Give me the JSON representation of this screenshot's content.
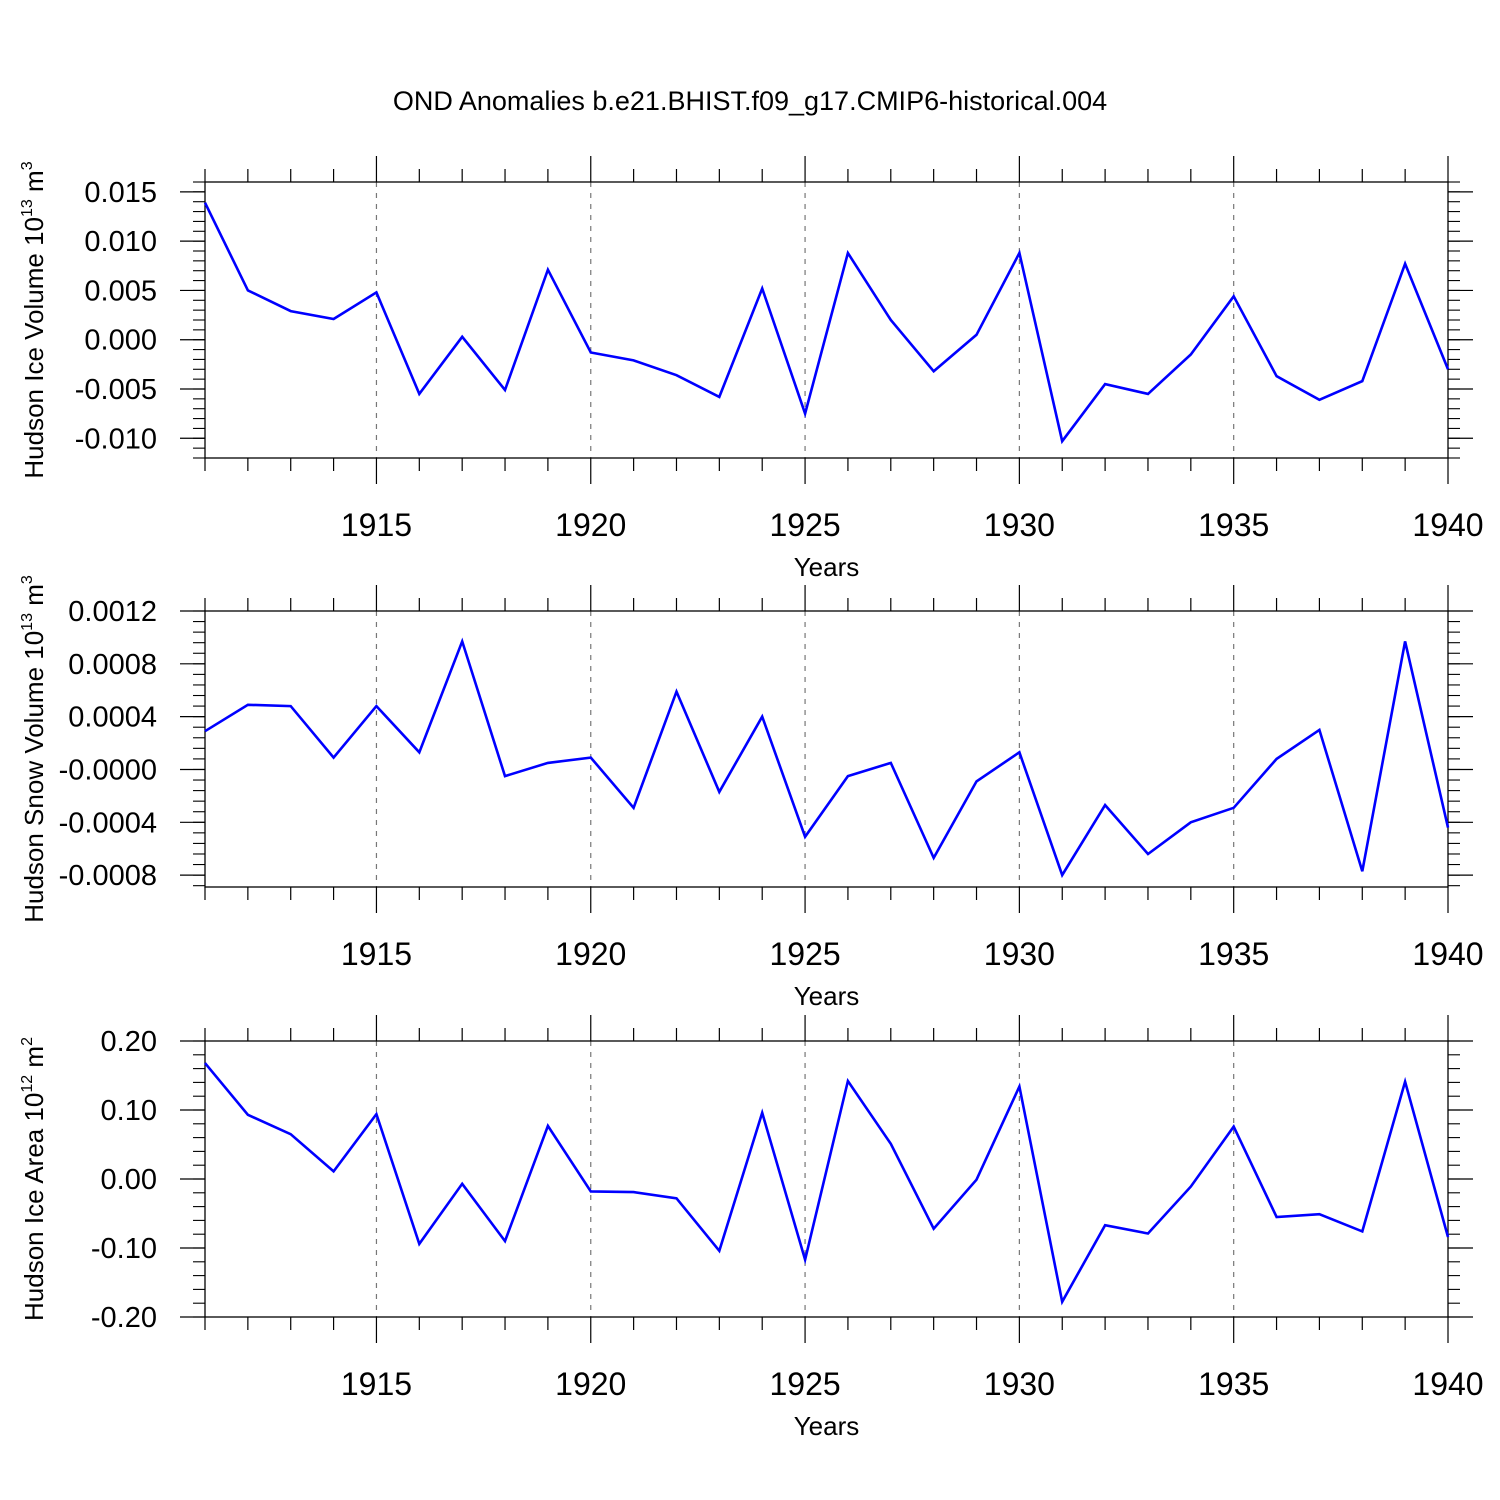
{
  "title": "OND Anomalies b.e21.BHIST.f09_g17.CMIP6-historical.004",
  "colors": {
    "series": "#0000ff",
    "axis": "#000000",
    "grid": "#777777"
  },
  "chart_data": [
    {
      "type": "line",
      "title": "",
      "ylabel": {
        "main": "Hudson Ice Volume 10",
        "power": "13",
        "unit": " m",
        "unit_power": "3"
      },
      "xlabel": "Years",
      "xlim": [
        1911,
        1940
      ],
      "ylim": [
        -0.012,
        0.016
      ],
      "x_ticks": [
        1915,
        1920,
        1925,
        1930,
        1935,
        1940
      ],
      "x_tick_labels": [
        "1915",
        "1920",
        "1925",
        "1930",
        "1935",
        "1940"
      ],
      "y_ticks": [
        0.015,
        0.01,
        0.005,
        0.0,
        -0.005,
        -0.01
      ],
      "y_tick_labels": [
        "0.015",
        "0.010",
        "0.005",
        "0.000",
        "-0.005",
        "-0.010"
      ],
      "grid": "vertical dashed at major x ticks",
      "x": [
        1911,
        1912,
        1913,
        1914,
        1915,
        1916,
        1917,
        1918,
        1919,
        1920,
        1921,
        1922,
        1923,
        1924,
        1925,
        1926,
        1927,
        1928,
        1929,
        1930,
        1931,
        1932,
        1933,
        1934,
        1935,
        1936,
        1937,
        1938,
        1939,
        1940
      ],
      "values": [
        0.0139,
        0.005,
        0.0029,
        0.0021,
        0.0048,
        -0.0055,
        0.0003,
        -0.0051,
        0.0071,
        -0.0013,
        -0.0021,
        -0.0036,
        -0.0058,
        0.0052,
        -0.0075,
        0.0088,
        0.002,
        -0.0032,
        0.0005,
        0.0088,
        -0.0103,
        -0.0045,
        -0.0055,
        -0.0015,
        0.0044,
        -0.0037,
        -0.0061,
        -0.0042,
        0.0077,
        -0.003
      ]
    },
    {
      "type": "line",
      "title": "",
      "ylabel": {
        "main": "Hudson Snow Volume 10",
        "power": "13",
        "unit": " m",
        "unit_power": "3"
      },
      "xlabel": "Years",
      "xlim": [
        1911,
        1940
      ],
      "ylim": [
        -0.00089,
        0.0012
      ],
      "x_ticks": [
        1915,
        1920,
        1925,
        1930,
        1935,
        1940
      ],
      "x_tick_labels": [
        "1915",
        "1920",
        "1925",
        "1930",
        "1935",
        "1940"
      ],
      "y_ticks": [
        0.0012,
        0.0008,
        0.0004,
        0.0,
        -0.0004,
        -0.0008
      ],
      "y_tick_labels": [
        "0.0012",
        "0.0008",
        "0.0004",
        "-0.0000",
        "-0.0004",
        "-0.0008"
      ],
      "grid": "vertical dashed at major x ticks",
      "x": [
        1911,
        1912,
        1913,
        1914,
        1915,
        1916,
        1917,
        1918,
        1919,
        1920,
        1921,
        1922,
        1923,
        1924,
        1925,
        1926,
        1927,
        1928,
        1929,
        1930,
        1931,
        1932,
        1933,
        1934,
        1935,
        1936,
        1937,
        1938,
        1939,
        1940
      ],
      "values": [
        0.00029,
        0.00049,
        0.00048,
        9e-05,
        0.00048,
        0.00013,
        0.00097,
        -5e-05,
        5e-05,
        9e-05,
        -0.00029,
        0.00059,
        -0.00017,
        0.0004,
        -0.00051,
        -5e-05,
        5e-05,
        -0.00067,
        -9e-05,
        0.00013,
        -0.0008,
        -0.00027,
        -0.00064,
        -0.0004,
        -0.00029,
        8e-05,
        0.0003,
        -0.00077,
        0.00097,
        -0.00044
      ]
    },
    {
      "type": "line",
      "title": "",
      "ylabel": {
        "main": "Hudson Ice Area 10",
        "power": "12",
        "unit": " m",
        "unit_power": "2"
      },
      "xlabel": "Years",
      "xlim": [
        1911,
        1940
      ],
      "ylim": [
        -0.2,
        0.2
      ],
      "x_ticks": [
        1915,
        1920,
        1925,
        1930,
        1935,
        1940
      ],
      "x_tick_labels": [
        "1915",
        "1920",
        "1925",
        "1930",
        "1935",
        "1940"
      ],
      "y_ticks": [
        0.2,
        0.1,
        0.0,
        -0.1,
        -0.2
      ],
      "y_tick_labels": [
        "0.20",
        "0.10",
        "0.00",
        "-0.10",
        "-0.20"
      ],
      "grid": "vertical dashed at major x ticks",
      "x": [
        1911,
        1912,
        1913,
        1914,
        1915,
        1916,
        1917,
        1918,
        1919,
        1920,
        1921,
        1922,
        1923,
        1924,
        1925,
        1926,
        1927,
        1928,
        1929,
        1930,
        1931,
        1932,
        1933,
        1934,
        1935,
        1936,
        1937,
        1938,
        1939,
        1940
      ],
      "values": [
        0.168,
        0.093,
        0.065,
        0.011,
        0.094,
        -0.094,
        -0.007,
        -0.09,
        0.077,
        -0.018,
        -0.019,
        -0.028,
        -0.104,
        0.096,
        -0.117,
        0.142,
        0.051,
        -0.072,
        -0.001,
        0.134,
        -0.178,
        -0.067,
        -0.079,
        -0.011,
        0.076,
        -0.055,
        -0.051,
        -0.076,
        0.141,
        -0.084
      ]
    }
  ]
}
